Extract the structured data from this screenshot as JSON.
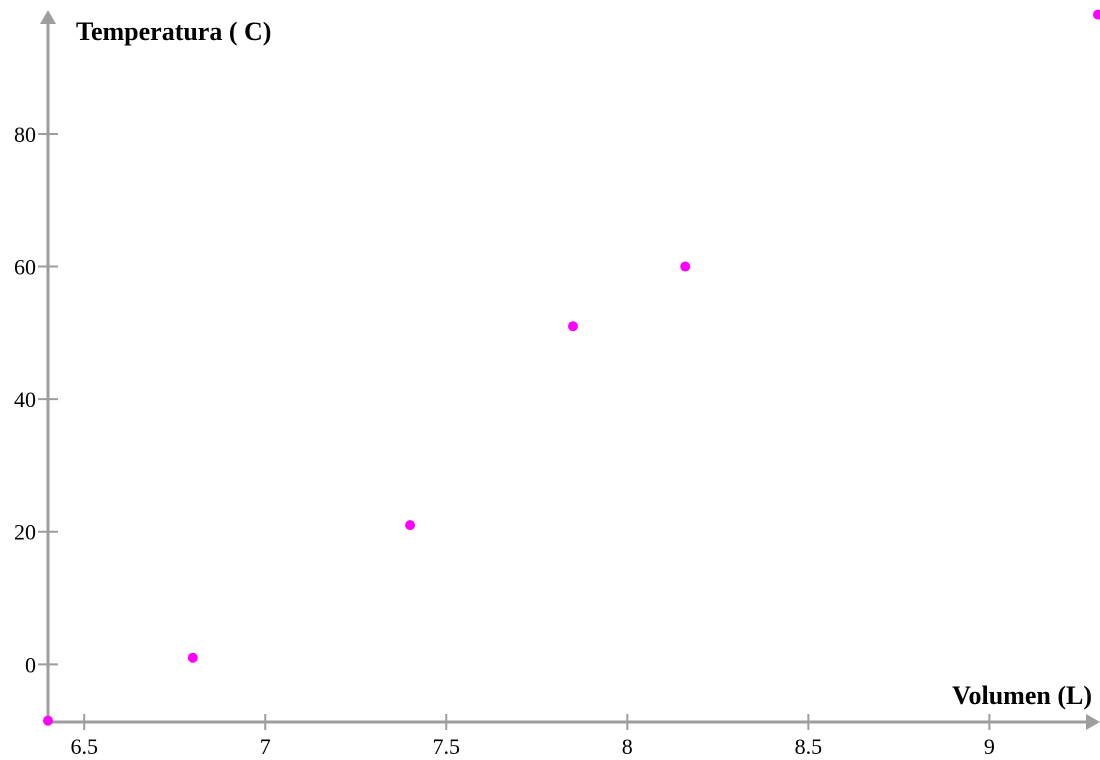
{
  "chart_data": {
    "type": "scatter",
    "xlabel": "Volumen (L)",
    "ylabel": "Temperatura ( C)",
    "xlim": [
      6.4,
      9.3
    ],
    "ylim": [
      -8.7,
      99
    ],
    "x_ticks": [
      {
        "value": 6.5,
        "label": "6.5"
      },
      {
        "value": 7,
        "label": "7"
      },
      {
        "value": 7.5,
        "label": "7.5"
      },
      {
        "value": 8,
        "label": "8"
      },
      {
        "value": 8.5,
        "label": "8.5"
      },
      {
        "value": 9,
        "label": "9"
      }
    ],
    "y_ticks": [
      {
        "value": 0,
        "label": "0"
      },
      {
        "value": 20,
        "label": "20"
      },
      {
        "value": 40,
        "label": "40"
      },
      {
        "value": 60,
        "label": "60"
      },
      {
        "value": 80,
        "label": "80"
      }
    ],
    "grid": false,
    "series": [
      {
        "color": "#ff00ff",
        "points": [
          {
            "x": 6.4,
            "y": -8.5
          },
          {
            "x": 6.8,
            "y": 1
          },
          {
            "x": 7.4,
            "y": 21
          },
          {
            "x": 7.85,
            "y": 51
          },
          {
            "x": 8.16,
            "y": 60
          },
          {
            "x": 9.3,
            "y": 98
          }
        ]
      }
    ]
  }
}
